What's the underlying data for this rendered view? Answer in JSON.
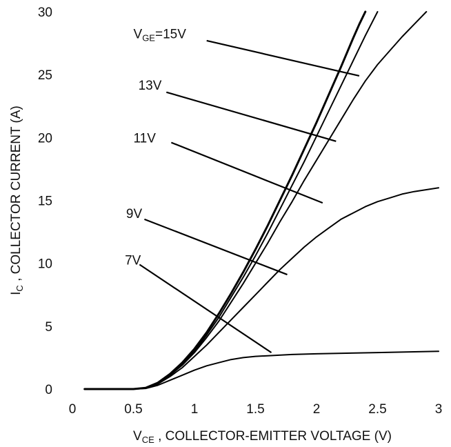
{
  "chart_data": {
    "type": "line",
    "title": "",
    "xlabel": {
      "main": "V",
      "sub": "CE",
      "rest": " , COLLECTOR-EMITTER VOLTAGE (V)"
    },
    "ylabel": {
      "main": "I",
      "sub": "C",
      "rest": " , COLLECTOR CURRENT (A)"
    },
    "xlim": [
      0,
      3
    ],
    "ylim": [
      0,
      30
    ],
    "x_ticks": [
      "0",
      "0.5",
      "1",
      "1.5",
      "2",
      "2.5",
      "3"
    ],
    "y_ticks": [
      "0",
      "5",
      "10",
      "15",
      "20",
      "25",
      "30"
    ],
    "grid": false,
    "series": [
      {
        "name": "VGE=15V",
        "label": {
          "main": "V",
          "sub": "GE",
          "rest": "=15V"
        },
        "points": [
          [
            0.1,
            0
          ],
          [
            0.5,
            0
          ],
          [
            0.6,
            0.1
          ],
          [
            0.7,
            0.5
          ],
          [
            0.8,
            1.2
          ],
          [
            0.9,
            2.1
          ],
          [
            1.0,
            3.2
          ],
          [
            1.1,
            4.5
          ],
          [
            1.2,
            6.0
          ],
          [
            1.3,
            7.6
          ],
          [
            1.4,
            9.3
          ],
          [
            1.5,
            11.1
          ],
          [
            1.6,
            13.0
          ],
          [
            1.7,
            15.0
          ],
          [
            1.8,
            17.0
          ],
          [
            1.9,
            19.1
          ],
          [
            2.0,
            21.2
          ],
          [
            2.1,
            23.4
          ],
          [
            2.2,
            25.6
          ],
          [
            2.3,
            27.9
          ],
          [
            2.35,
            29.0
          ],
          [
            2.4,
            30.0
          ]
        ]
      },
      {
        "name": "13V",
        "label": {
          "main": "13V",
          "sub": "",
          "rest": ""
        },
        "points": [
          [
            0.1,
            0
          ],
          [
            0.5,
            0
          ],
          [
            0.6,
            0.1
          ],
          [
            0.7,
            0.5
          ],
          [
            0.8,
            1.2
          ],
          [
            0.9,
            2.0
          ],
          [
            1.0,
            3.0
          ],
          [
            1.1,
            4.3
          ],
          [
            1.2,
            5.7
          ],
          [
            1.3,
            7.3
          ],
          [
            1.4,
            8.9
          ],
          [
            1.5,
            10.6
          ],
          [
            1.6,
            12.4
          ],
          [
            1.7,
            14.3
          ],
          [
            1.8,
            16.2
          ],
          [
            1.9,
            18.1
          ],
          [
            2.0,
            20.1
          ],
          [
            2.1,
            22.1
          ],
          [
            2.2,
            24.1
          ],
          [
            2.3,
            26.1
          ],
          [
            2.4,
            28.1
          ],
          [
            2.5,
            30.0
          ]
        ]
      },
      {
        "name": "11V",
        "label": {
          "main": "11V",
          "sub": "",
          "rest": ""
        },
        "points": [
          [
            0.1,
            0
          ],
          [
            0.5,
            0
          ],
          [
            0.6,
            0.1
          ],
          [
            0.7,
            0.5
          ],
          [
            0.8,
            1.1
          ],
          [
            0.9,
            1.9
          ],
          [
            1.0,
            2.9
          ],
          [
            1.1,
            4.1
          ],
          [
            1.2,
            5.4
          ],
          [
            1.3,
            6.9
          ],
          [
            1.4,
            8.4
          ],
          [
            1.5,
            10.0
          ],
          [
            1.6,
            11.6
          ],
          [
            1.7,
            13.3
          ],
          [
            1.8,
            14.9
          ],
          [
            1.9,
            16.6
          ],
          [
            2.0,
            18.2
          ],
          [
            2.1,
            19.8
          ],
          [
            2.2,
            21.4
          ],
          [
            2.3,
            23.0
          ],
          [
            2.4,
            24.5
          ],
          [
            2.5,
            25.8
          ],
          [
            2.6,
            26.9
          ],
          [
            2.7,
            28.0
          ],
          [
            2.8,
            29.0
          ],
          [
            2.9,
            30.0
          ]
        ]
      },
      {
        "name": "9V",
        "label": {
          "main": "9V",
          "sub": "",
          "rest": ""
        },
        "points": [
          [
            0.1,
            0
          ],
          [
            0.5,
            0
          ],
          [
            0.6,
            0.1
          ],
          [
            0.7,
            0.4
          ],
          [
            0.8,
            1.0
          ],
          [
            0.9,
            1.7
          ],
          [
            1.0,
            2.6
          ],
          [
            1.1,
            3.5
          ],
          [
            1.2,
            4.5
          ],
          [
            1.3,
            5.5
          ],
          [
            1.4,
            6.5
          ],
          [
            1.5,
            7.5
          ],
          [
            1.6,
            8.5
          ],
          [
            1.7,
            9.5
          ],
          [
            1.8,
            10.4
          ],
          [
            1.9,
            11.3
          ],
          [
            2.0,
            12.1
          ],
          [
            2.1,
            12.8
          ],
          [
            2.2,
            13.5
          ],
          [
            2.3,
            14.0
          ],
          [
            2.4,
            14.5
          ],
          [
            2.5,
            14.9
          ],
          [
            2.6,
            15.2
          ],
          [
            2.7,
            15.5
          ],
          [
            2.8,
            15.7
          ],
          [
            2.9,
            15.85
          ],
          [
            3.0,
            16.0
          ]
        ]
      },
      {
        "name": "7V",
        "label": {
          "main": "7V",
          "sub": "",
          "rest": ""
        },
        "points": [
          [
            0.1,
            0
          ],
          [
            0.5,
            0
          ],
          [
            0.6,
            0.05
          ],
          [
            0.7,
            0.3
          ],
          [
            0.8,
            0.7
          ],
          [
            0.9,
            1.1
          ],
          [
            1.0,
            1.5
          ],
          [
            1.1,
            1.85
          ],
          [
            1.2,
            2.1
          ],
          [
            1.3,
            2.35
          ],
          [
            1.4,
            2.5
          ],
          [
            1.5,
            2.6
          ],
          [
            1.6,
            2.65
          ],
          [
            1.8,
            2.75
          ],
          [
            2.0,
            2.8
          ],
          [
            2.5,
            2.9
          ],
          [
            3.0,
            3.0
          ]
        ]
      }
    ],
    "annotations": [
      {
        "series": "VGE=15V",
        "label_at": [
          0.5,
          27.9
        ],
        "line_from": [
          1.1,
          27.7
        ],
        "line_to": [
          2.35,
          24.9
        ]
      },
      {
        "series": "13V",
        "label_at": [
          0.54,
          23.8
        ],
        "line_from": [
          0.77,
          23.6
        ],
        "line_to": [
          2.16,
          19.7
        ]
      },
      {
        "series": "11V",
        "label_at": [
          0.5,
          19.6
        ],
        "line_from": [
          0.81,
          19.6
        ],
        "line_to": [
          2.05,
          14.8
        ]
      },
      {
        "series": "9V",
        "label_at": [
          0.44,
          13.6
        ],
        "line_from": [
          0.59,
          13.5
        ],
        "line_to": [
          1.76,
          9.1
        ]
      },
      {
        "series": "7V",
        "label_at": [
          0.43,
          9.9
        ],
        "line_from": [
          0.55,
          9.9
        ],
        "line_to": [
          1.63,
          2.9
        ]
      }
    ]
  }
}
